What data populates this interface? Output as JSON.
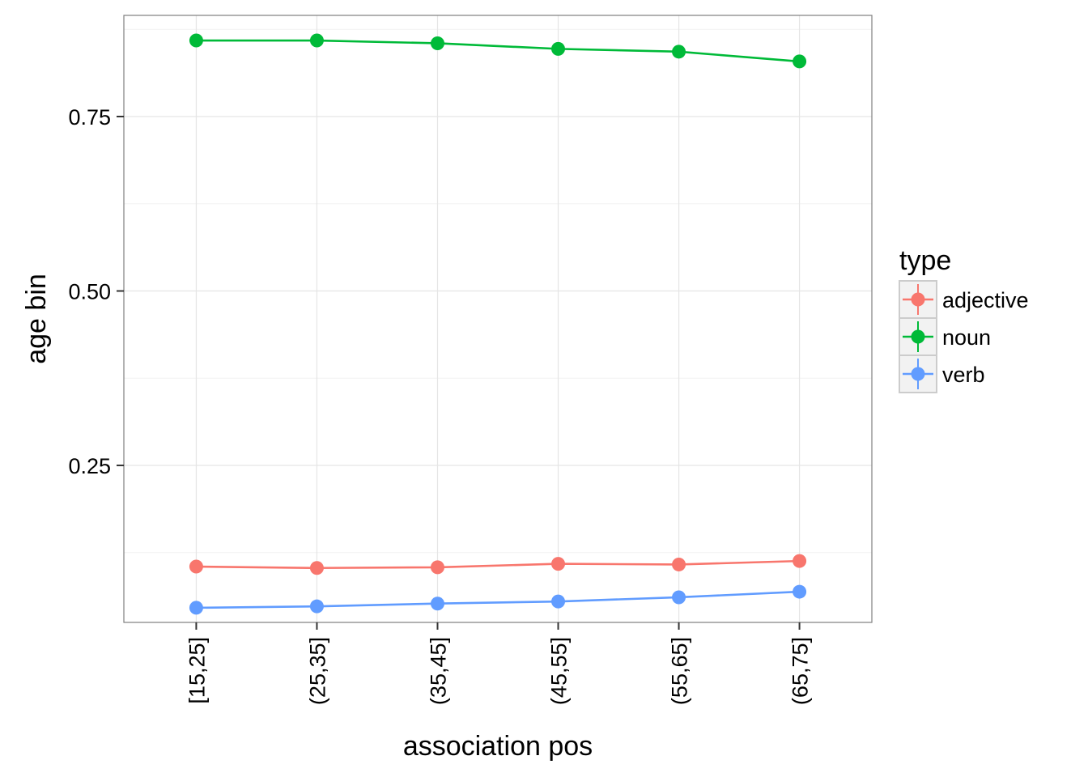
{
  "chart_data": {
    "type": "line",
    "title": "",
    "xlabel": "association pos",
    "ylabel": "age bin",
    "categories": [
      "[15,25]",
      "(25,35]",
      "(35,45]",
      "(45,55]",
      "(55,65]",
      "(65,75]"
    ],
    "ylim": [
      0.025,
      0.895
    ],
    "yticks": [
      0.25,
      0.5,
      0.75
    ],
    "ytick_labels": [
      "0.25",
      "0.50",
      "0.75"
    ],
    "grid": true,
    "legend": {
      "title": "type",
      "position": "right"
    },
    "series": [
      {
        "name": "adjective",
        "color": "#F8766D",
        "values": [
          0.105,
          0.103,
          0.104,
          0.109,
          0.108,
          0.113
        ]
      },
      {
        "name": "noun",
        "color": "#00BA38",
        "values": [
          0.859,
          0.859,
          0.855,
          0.847,
          0.843,
          0.829
        ]
      },
      {
        "name": "verb",
        "color": "#619CFF",
        "values": [
          0.046,
          0.048,
          0.052,
          0.055,
          0.061,
          0.069
        ]
      }
    ]
  }
}
